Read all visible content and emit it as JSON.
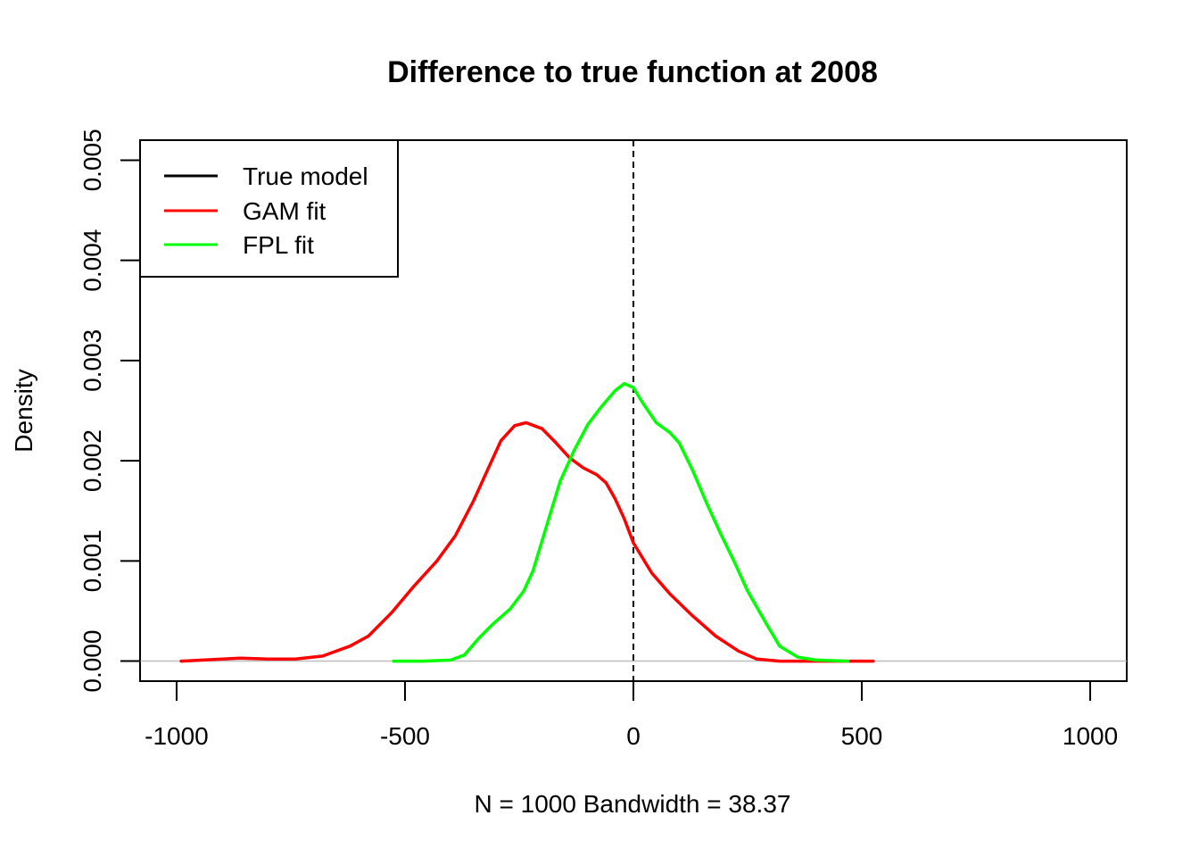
{
  "chart_data": {
    "type": "line",
    "title": "Difference to true function at 2008",
    "xlabel": "N = 1000   Bandwidth = 38.37",
    "ylabel": "Density",
    "xlim": [
      -1080,
      1080
    ],
    "ylim": [
      -0.0002,
      0.0052
    ],
    "xticks": [
      -1000,
      -500,
      0,
      500,
      1000
    ],
    "xtick_labels": [
      "-1000",
      "-500",
      "0",
      "500",
      "1000"
    ],
    "yticks": [
      0.0,
      0.001,
      0.002,
      0.003,
      0.004,
      0.005
    ],
    "ytick_labels": [
      "0.000",
      "0.001",
      "0.002",
      "0.003",
      "0.004",
      "0.005"
    ],
    "reference_lines": {
      "vertical_dashed_x": 0,
      "horizontal_gray_y": 0
    },
    "legend": {
      "position": "top-left",
      "entries": [
        {
          "label": "True model",
          "color": "#000000"
        },
        {
          "label": "GAM fit",
          "color": "#ff0000"
        },
        {
          "label": "FPL fit",
          "color": "#00ff00"
        }
      ]
    },
    "series": [
      {
        "name": "GAM fit",
        "color": "#ff0000",
        "points": [
          [
            -990,
            0.0
          ],
          [
            -900,
            2e-05
          ],
          [
            -860,
            3e-05
          ],
          [
            -800,
            2e-05
          ],
          [
            -740,
            2e-05
          ],
          [
            -680,
            5e-05
          ],
          [
            -620,
            0.00015
          ],
          [
            -580,
            0.00025
          ],
          [
            -530,
            0.00048
          ],
          [
            -480,
            0.00075
          ],
          [
            -430,
            0.001
          ],
          [
            -390,
            0.00125
          ],
          [
            -350,
            0.0016
          ],
          [
            -320,
            0.0019
          ],
          [
            -290,
            0.0022
          ],
          [
            -260,
            0.00235
          ],
          [
            -235,
            0.00238
          ],
          [
            -200,
            0.00232
          ],
          [
            -170,
            0.00218
          ],
          [
            -140,
            0.00203
          ],
          [
            -110,
            0.00193
          ],
          [
            -80,
            0.00186
          ],
          [
            -60,
            0.00178
          ],
          [
            -40,
            0.00162
          ],
          [
            -20,
            0.00142
          ],
          [
            0,
            0.00118
          ],
          [
            40,
            0.00088
          ],
          [
            80,
            0.00067
          ],
          [
            130,
            0.00045
          ],
          [
            180,
            0.00025
          ],
          [
            230,
            0.0001
          ],
          [
            270,
            2e-05
          ],
          [
            320,
            0.0
          ],
          [
            400,
            0.0
          ],
          [
            525,
            0.0
          ]
        ]
      },
      {
        "name": "FPL fit",
        "color": "#00ff00",
        "points": [
          [
            -525,
            0.0
          ],
          [
            -460,
            0.0
          ],
          [
            -400,
            1e-05
          ],
          [
            -370,
            6e-05
          ],
          [
            -340,
            0.00022
          ],
          [
            -310,
            0.00036
          ],
          [
            -270,
            0.00052
          ],
          [
            -240,
            0.0007
          ],
          [
            -220,
            0.0009
          ],
          [
            -200,
            0.0012
          ],
          [
            -180,
            0.0015
          ],
          [
            -160,
            0.0018
          ],
          [
            -130,
            0.0021
          ],
          [
            -100,
            0.00236
          ],
          [
            -70,
            0.00254
          ],
          [
            -40,
            0.0027
          ],
          [
            -20,
            0.00277
          ],
          [
            0,
            0.00273
          ],
          [
            20,
            0.00258
          ],
          [
            50,
            0.00238
          ],
          [
            80,
            0.00228
          ],
          [
            100,
            0.00218
          ],
          [
            130,
            0.0019
          ],
          [
            160,
            0.00158
          ],
          [
            190,
            0.00128
          ],
          [
            220,
            0.001
          ],
          [
            250,
            0.0007
          ],
          [
            290,
            0.00038
          ],
          [
            320,
            0.00015
          ],
          [
            360,
            4e-05
          ],
          [
            400,
            1e-05
          ],
          [
            470,
            0.0
          ]
        ]
      }
    ]
  }
}
